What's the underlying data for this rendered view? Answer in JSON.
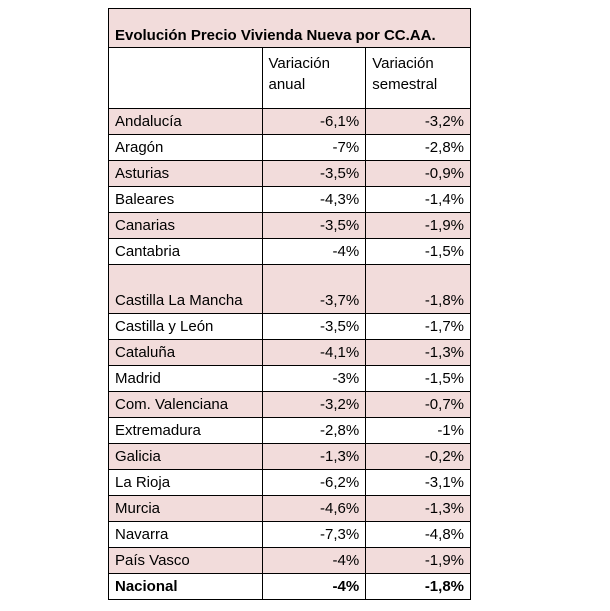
{
  "table": {
    "title": "Evolución Precio Vivienda Nueva por CC.AA.",
    "headers": [
      "",
      "Variación anual",
      "Variación semestral"
    ],
    "shade_color": "#f2dcdb",
    "rows": [
      {
        "region": "Andalucía",
        "anual": "-6,1%",
        "semestral": "-3,2%"
      },
      {
        "region": "Aragón",
        "anual": "-7%",
        "semestral": "-2,8%"
      },
      {
        "region": "Asturias",
        "anual": "-3,5%",
        "semestral": "-0,9%"
      },
      {
        "region": "Baleares",
        "anual": "-4,3%",
        "semestral": "-1,4%"
      },
      {
        "region": "Canarias",
        "anual": "-3,5%",
        "semestral": "-1,9%"
      },
      {
        "region": "Cantabria",
        "anual": "-4%",
        "semestral": "-1,5%"
      },
      {
        "region": "Castilla La Mancha",
        "anual": "-3,7%",
        "semestral": "-1,8%"
      },
      {
        "region": "Castilla y León",
        "anual": "-3,5%",
        "semestral": "-1,7%"
      },
      {
        "region": "Cataluña",
        "anual": "-4,1%",
        "semestral": "-1,3%"
      },
      {
        "region": "Madrid",
        "anual": "-3%",
        "semestral": "-1,5%"
      },
      {
        "region": "Com. Valenciana",
        "anual": "-3,2%",
        "semestral": "-0,7%"
      },
      {
        "region": "Extremadura",
        "anual": "-2,8%",
        "semestral": "-1%"
      },
      {
        "region": "Galicia",
        "anual": "-1,3%",
        "semestral": "-0,2%"
      },
      {
        "region": "La Rioja",
        "anual": "-6,2%",
        "semestral": "-3,1%"
      },
      {
        "region": "Murcia",
        "anual": "-4,6%",
        "semestral": "-1,3%"
      },
      {
        "region": "Navarra",
        "anual": "-7,3%",
        "semestral": "-4,8%"
      },
      {
        "region": "País Vasco",
        "anual": "-4%",
        "semestral": "-1,9%"
      }
    ],
    "total": {
      "region": "Nacional",
      "anual": "-4%",
      "semestral": "-1,8%"
    }
  }
}
